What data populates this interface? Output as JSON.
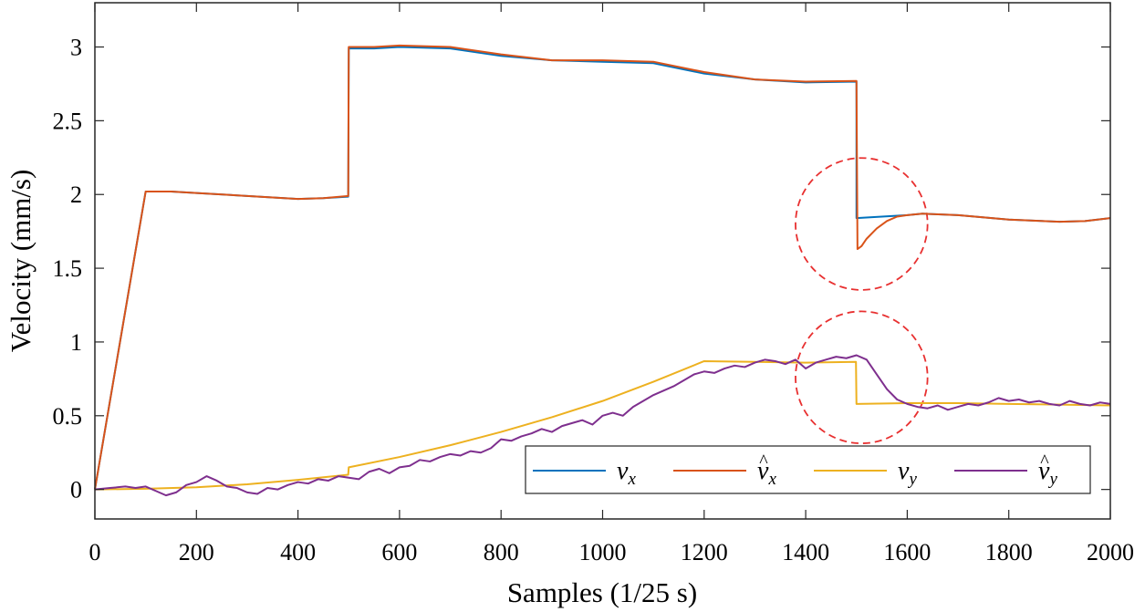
{
  "chart_data": {
    "type": "line",
    "title": "",
    "xlabel": "Samples (1/25 s)",
    "ylabel": "Velocity (mm/s)",
    "xlim": [
      0,
      2000
    ],
    "ylim": [
      -0.2,
      3.3
    ],
    "xticks": [
      0,
      200,
      400,
      600,
      800,
      1000,
      1200,
      1400,
      1600,
      1800,
      2000
    ],
    "xtick_labels": [
      "0",
      "200",
      "400",
      "600",
      "800",
      "1000",
      "1200",
      "1400",
      "1600",
      "1800",
      "2000"
    ],
    "yticks": [
      0,
      0.5,
      1,
      1.5,
      2,
      2.5,
      3
    ],
    "ytick_labels": [
      "0",
      "0.5",
      "1",
      "1.5",
      "2",
      "2.5",
      "3"
    ],
    "grid": false,
    "legend_position": "bottom-right",
    "series": [
      {
        "name": "v_x",
        "label_base": "v",
        "label_sub": "x",
        "label_hat": false,
        "color": "#0072BD",
        "x": [
          0,
          100,
          150,
          200,
          300,
          400,
          450,
          499,
          500,
          550,
          600,
          700,
          800,
          900,
          1000,
          1100,
          1200,
          1300,
          1400,
          1500,
          1500,
          1550,
          1600,
          1630,
          1700,
          1800,
          1900,
          1950,
          2000
        ],
        "y": [
          0,
          2.02,
          2.02,
          2.01,
          1.99,
          1.97,
          1.975,
          1.985,
          2.99,
          2.99,
          3.0,
          2.99,
          2.94,
          2.91,
          2.9,
          2.89,
          2.82,
          2.78,
          2.76,
          2.765,
          1.84,
          1.85,
          1.86,
          1.87,
          1.86,
          1.83,
          1.815,
          1.82,
          1.84
        ]
      },
      {
        "name": "v_x_hat",
        "label_base": "v",
        "label_sub": "x",
        "label_hat": true,
        "color": "#D95319",
        "x": [
          0,
          100,
          150,
          200,
          300,
          400,
          450,
          499,
          500,
          550,
          600,
          700,
          800,
          900,
          1000,
          1100,
          1200,
          1300,
          1400,
          1500,
          1502,
          1510,
          1520,
          1540,
          1560,
          1580,
          1600,
          1630,
          1700,
          1800,
          1900,
          1950,
          2000
        ],
        "y": [
          0,
          2.02,
          2.02,
          2.01,
          1.99,
          1.97,
          1.975,
          1.99,
          3.0,
          3.0,
          3.01,
          3.0,
          2.95,
          2.91,
          2.91,
          2.9,
          2.83,
          2.78,
          2.765,
          2.77,
          1.63,
          1.65,
          1.7,
          1.77,
          1.82,
          1.85,
          1.86,
          1.87,
          1.86,
          1.83,
          1.815,
          1.82,
          1.84
        ]
      },
      {
        "name": "v_y",
        "label_base": "v",
        "label_sub": "y",
        "label_hat": false,
        "color": "#EDB120",
        "x": [
          0,
          100,
          200,
          300,
          400,
          499,
          500,
          600,
          700,
          800,
          900,
          1000,
          1100,
          1200,
          1300,
          1400,
          1499,
          1500,
          1600,
          1700,
          1800,
          1900,
          2000
        ],
        "y": [
          0,
          0.005,
          0.015,
          0.035,
          0.065,
          0.1,
          0.15,
          0.22,
          0.3,
          0.39,
          0.49,
          0.6,
          0.73,
          0.87,
          0.865,
          0.86,
          0.865,
          0.58,
          0.585,
          0.585,
          0.58,
          0.575,
          0.57
        ]
      },
      {
        "name": "v_y_hat",
        "label_base": "v",
        "label_sub": "y",
        "label_hat": true,
        "color": "#7E2F8E",
        "x": [
          0,
          30,
          60,
          80,
          100,
          120,
          140,
          160,
          180,
          200,
          220,
          240,
          260,
          280,
          300,
          320,
          340,
          360,
          380,
          400,
          420,
          440,
          460,
          480,
          500,
          520,
          540,
          560,
          580,
          600,
          620,
          640,
          660,
          680,
          700,
          720,
          740,
          760,
          780,
          800,
          820,
          840,
          860,
          880,
          900,
          920,
          940,
          960,
          980,
          1000,
          1020,
          1040,
          1060,
          1080,
          1100,
          1120,
          1140,
          1160,
          1180,
          1200,
          1220,
          1240,
          1260,
          1280,
          1300,
          1320,
          1340,
          1360,
          1380,
          1400,
          1420,
          1440,
          1460,
          1480,
          1500,
          1520,
          1540,
          1560,
          1580,
          1600,
          1620,
          1640,
          1660,
          1680,
          1700,
          1720,
          1740,
          1760,
          1780,
          1800,
          1820,
          1840,
          1860,
          1880,
          1900,
          1920,
          1940,
          1960,
          1980,
          2000
        ],
        "y": [
          0,
          0.01,
          0.02,
          0.01,
          0.02,
          -0.01,
          -0.04,
          -0.02,
          0.03,
          0.05,
          0.09,
          0.06,
          0.02,
          0.01,
          -0.02,
          -0.03,
          0.01,
          0.0,
          0.03,
          0.05,
          0.04,
          0.07,
          0.06,
          0.09,
          0.08,
          0.07,
          0.12,
          0.14,
          0.11,
          0.15,
          0.16,
          0.2,
          0.19,
          0.22,
          0.24,
          0.23,
          0.26,
          0.25,
          0.28,
          0.34,
          0.33,
          0.36,
          0.38,
          0.41,
          0.39,
          0.43,
          0.45,
          0.47,
          0.44,
          0.5,
          0.52,
          0.5,
          0.56,
          0.6,
          0.64,
          0.67,
          0.7,
          0.74,
          0.78,
          0.8,
          0.79,
          0.82,
          0.84,
          0.83,
          0.86,
          0.88,
          0.87,
          0.85,
          0.88,
          0.82,
          0.86,
          0.88,
          0.9,
          0.89,
          0.91,
          0.88,
          0.78,
          0.68,
          0.61,
          0.58,
          0.56,
          0.55,
          0.57,
          0.54,
          0.56,
          0.58,
          0.57,
          0.59,
          0.62,
          0.6,
          0.61,
          0.59,
          0.6,
          0.58,
          0.57,
          0.6,
          0.58,
          0.57,
          0.59,
          0.58
        ]
      }
    ],
    "annotations": [
      {
        "type": "circle",
        "cx": 1510,
        "cy": 1.8,
        "r": 130,
        "r_units": "samples",
        "color": "#E83030",
        "style": "dashed"
      },
      {
        "type": "circle",
        "cx": 1510,
        "cy": 0.76,
        "r": 130,
        "r_units": "samples",
        "color": "#E83030",
        "style": "dashed"
      }
    ]
  }
}
